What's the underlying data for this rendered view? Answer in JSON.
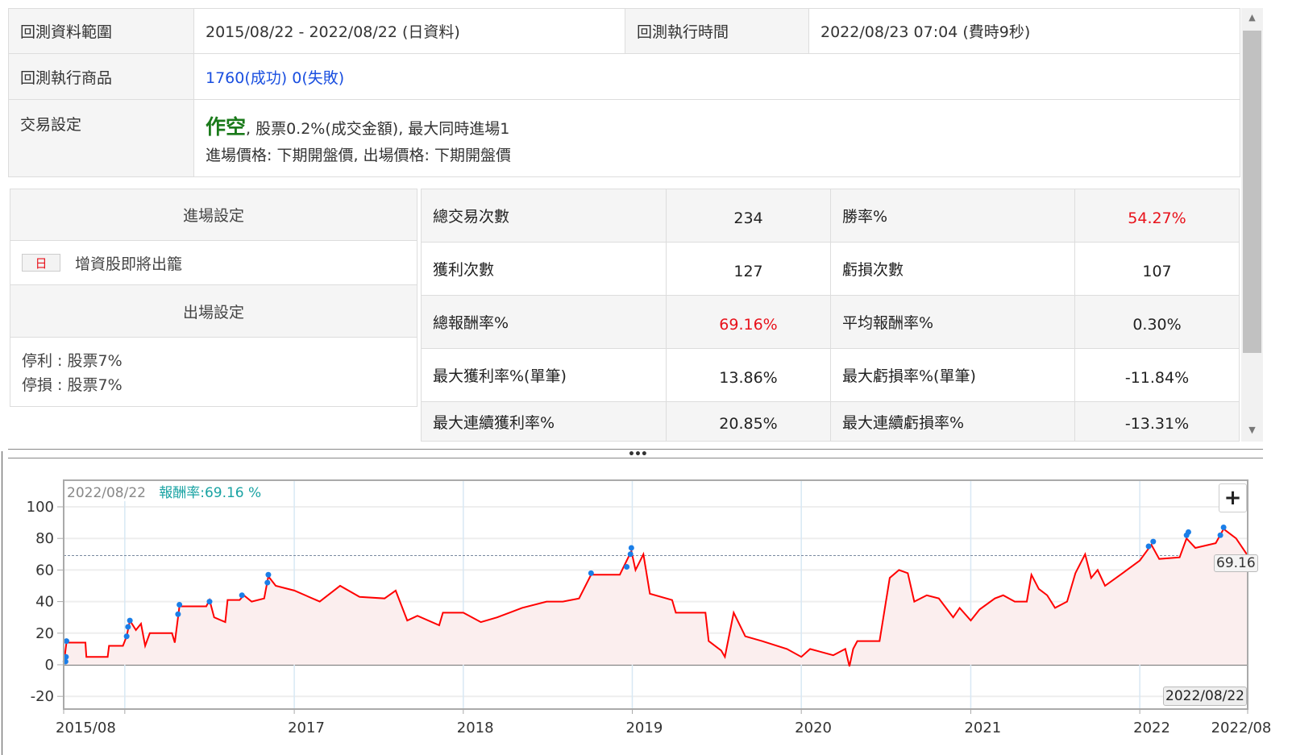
{
  "info": {
    "range_label": "回測資料範圍",
    "range_value": "2015/08/22 - 2022/08/22 (日資料)",
    "exec_time_label": "回測執行時間",
    "exec_time_value": "2022/08/23 07:04 (費時9秒)",
    "products_label": "回測執行商品",
    "products_success": "1760(成功)",
    "products_fail": "0(失敗)",
    "trade_label": "交易設定",
    "trade_direction": "作空",
    "trade_detail": ", 股票0.2%(成交金額), 最大同時進場1",
    "trade_prices": "進場價格: 下期開盤價, 出場價格: 下期開盤價"
  },
  "entry": {
    "title": "進場設定",
    "badge": "日",
    "condition": "增資股即將出籠"
  },
  "exit": {
    "title": "出場設定",
    "take_profit": "停利 : 股票7%",
    "stop_loss": "停損 : 股票7%"
  },
  "stats": [
    {
      "l1": "總交易次數",
      "v1": "234",
      "l2": "勝率%",
      "v2": "54.27%",
      "v2red": true
    },
    {
      "l1": "獲利次數",
      "v1": "127",
      "l2": "虧損次數",
      "v2": "107"
    },
    {
      "l1": "總報酬率%",
      "v1": "69.16%",
      "v1red": true,
      "l2": "平均報酬率%",
      "v2": "0.30%"
    },
    {
      "l1": "最大獲利率%(單筆)",
      "v1": "13.86%",
      "l2": "最大虧損率%(單筆)",
      "v2": "-11.84%"
    },
    {
      "l1": "最大連續獲利率%",
      "v1": "20.85%",
      "l2": "最大連續虧損率%",
      "v2": "-13.31%"
    }
  ],
  "colors": {
    "line": "#ff0000",
    "fill": "#fbeeee",
    "marker": "#1a7ee8",
    "negative": "#1a9a1a",
    "accent_teal": "#1aa3a3",
    "red": "#e8121b"
  },
  "chart_data": {
    "type": "line",
    "tooltip_date": "2022/08/22",
    "tooltip_label": "報酬率:",
    "tooltip_value": "69.16 %",
    "last_value_label": "69.16",
    "crosshair_date": "2022/08/22",
    "ylim": [
      -28,
      114
    ],
    "yticks": [
      "100",
      "80",
      "60",
      "40",
      "20",
      "0",
      "-20"
    ],
    "xticks": [
      {
        "label": "2015/08",
        "date": "2015-08-22"
      },
      {
        "label": "",
        "date": "2016-01-01"
      },
      {
        "label": "2017",
        "date": "2017-01-01"
      },
      {
        "label": "2018",
        "date": "2018-01-01"
      },
      {
        "label": "2019",
        "date": "2019-01-01"
      },
      {
        "label": "2020",
        "date": "2020-01-01"
      },
      {
        "label": "2021",
        "date": "2021-01-01"
      },
      {
        "label": "2022",
        "date": "2022-01-01"
      },
      {
        "label": "2022/08",
        "date": "2022-08-22"
      }
    ],
    "xlim": [
      "2015-08-22",
      "2022-08-22"
    ],
    "series": [
      [
        "2015-08-22",
        0
      ],
      [
        "2015-08-28",
        14
      ],
      [
        "2015-10-08",
        14
      ],
      [
        "2015-10-10",
        5
      ],
      [
        "2015-11-25",
        5
      ],
      [
        "2015-11-28",
        12
      ],
      [
        "2015-12-28",
        12
      ],
      [
        "2016-01-05",
        18
      ],
      [
        "2016-01-12",
        28
      ],
      [
        "2016-01-25",
        22
      ],
      [
        "2016-02-05",
        26
      ],
      [
        "2016-02-14",
        12
      ],
      [
        "2016-02-24",
        20
      ],
      [
        "2016-04-12",
        20
      ],
      [
        "2016-04-18",
        14
      ],
      [
        "2016-04-28",
        37
      ],
      [
        "2016-06-25",
        37
      ],
      [
        "2016-07-02",
        41
      ],
      [
        "2016-07-12",
        30
      ],
      [
        "2016-08-05",
        27
      ],
      [
        "2016-08-10",
        41
      ],
      [
        "2016-09-05",
        41
      ],
      [
        "2016-09-14",
        44
      ],
      [
        "2016-10-01",
        40
      ],
      [
        "2016-10-28",
        42
      ],
      [
        "2016-11-06",
        56
      ],
      [
        "2016-11-22",
        50
      ],
      [
        "2017-01-01",
        47
      ],
      [
        "2017-02-25",
        40
      ],
      [
        "2017-04-10",
        50
      ],
      [
        "2017-05-22",
        43
      ],
      [
        "2017-07-15",
        42
      ],
      [
        "2017-08-08",
        47
      ],
      [
        "2017-09-02",
        28
      ],
      [
        "2017-09-24",
        31
      ],
      [
        "2017-11-10",
        25
      ],
      [
        "2017-11-18",
        33
      ],
      [
        "2018-01-01",
        33
      ],
      [
        "2018-02-08",
        27
      ],
      [
        "2018-03-15",
        30
      ],
      [
        "2018-05-08",
        36
      ],
      [
        "2018-06-30",
        40
      ],
      [
        "2018-08-04",
        40
      ],
      [
        "2018-09-08",
        42
      ],
      [
        "2018-10-04",
        57
      ],
      [
        "2018-12-05",
        57
      ],
      [
        "2018-12-30",
        72
      ],
      [
        "2019-01-08",
        60
      ],
      [
        "2019-01-25",
        70
      ],
      [
        "2019-02-08",
        45
      ],
      [
        "2019-03-28",
        41
      ],
      [
        "2019-04-05",
        33
      ],
      [
        "2019-06-08",
        33
      ],
      [
        "2019-06-15",
        15
      ],
      [
        "2019-07-12",
        9
      ],
      [
        "2019-07-20",
        5
      ],
      [
        "2019-08-08",
        33
      ],
      [
        "2019-09-02",
        18
      ],
      [
        "2019-10-08",
        15
      ],
      [
        "2019-12-01",
        10
      ],
      [
        "2020-01-01",
        5
      ],
      [
        "2020-01-20",
        10
      ],
      [
        "2020-03-10",
        6
      ],
      [
        "2020-04-05",
        10
      ],
      [
        "2020-04-14",
        -1
      ],
      [
        "2020-04-22",
        10
      ],
      [
        "2020-05-01",
        15
      ],
      [
        "2020-06-18",
        15
      ],
      [
        "2020-07-10",
        55
      ],
      [
        "2020-07-30",
        60
      ],
      [
        "2020-08-18",
        58
      ],
      [
        "2020-09-01",
        40
      ],
      [
        "2020-09-28",
        44
      ],
      [
        "2020-10-24",
        42
      ],
      [
        "2020-11-24",
        30
      ],
      [
        "2020-12-08",
        36
      ],
      [
        "2021-01-01",
        28
      ],
      [
        "2021-01-20",
        35
      ],
      [
        "2021-02-22",
        42
      ],
      [
        "2021-03-12",
        44
      ],
      [
        "2021-04-06",
        40
      ],
      [
        "2021-05-02",
        40
      ],
      [
        "2021-05-12",
        57
      ],
      [
        "2021-05-28",
        48
      ],
      [
        "2021-06-15",
        44
      ],
      [
        "2021-07-02",
        36
      ],
      [
        "2021-07-28",
        40
      ],
      [
        "2021-08-15",
        58
      ],
      [
        "2021-09-05",
        70
      ],
      [
        "2021-09-18",
        55
      ],
      [
        "2021-10-02",
        60
      ],
      [
        "2021-10-18",
        50
      ],
      [
        "2021-11-25",
        58
      ],
      [
        "2022-01-01",
        66
      ],
      [
        "2022-01-26",
        76
      ],
      [
        "2022-02-12",
        67
      ],
      [
        "2022-03-28",
        68
      ],
      [
        "2022-04-12",
        80
      ],
      [
        "2022-05-01",
        74
      ],
      [
        "2022-06-14",
        77
      ],
      [
        "2022-07-01",
        86
      ],
      [
        "2022-07-28",
        80
      ],
      [
        "2022-08-22",
        69.16
      ]
    ],
    "markers": [
      [
        "2015-08-26",
        2
      ],
      [
        "2015-08-27",
        5
      ],
      [
        "2015-08-28",
        15
      ],
      [
        "2016-01-05",
        18
      ],
      [
        "2016-01-08",
        24
      ],
      [
        "2016-01-12",
        28
      ],
      [
        "2016-04-25",
        32
      ],
      [
        "2016-04-28",
        38
      ],
      [
        "2016-07-02",
        40
      ],
      [
        "2016-09-10",
        44
      ],
      [
        "2016-11-04",
        52
      ],
      [
        "2016-11-06",
        57
      ],
      [
        "2018-10-04",
        58
      ],
      [
        "2018-12-20",
        62
      ],
      [
        "2018-12-28",
        70
      ],
      [
        "2018-12-30",
        74
      ],
      [
        "2022-01-20",
        75
      ],
      [
        "2022-01-30",
        78
      ],
      [
        "2022-04-12",
        82
      ],
      [
        "2022-04-16",
        84
      ],
      [
        "2022-06-24",
        82
      ],
      [
        "2022-07-01",
        87
      ]
    ],
    "reference_line": 69.16
  }
}
